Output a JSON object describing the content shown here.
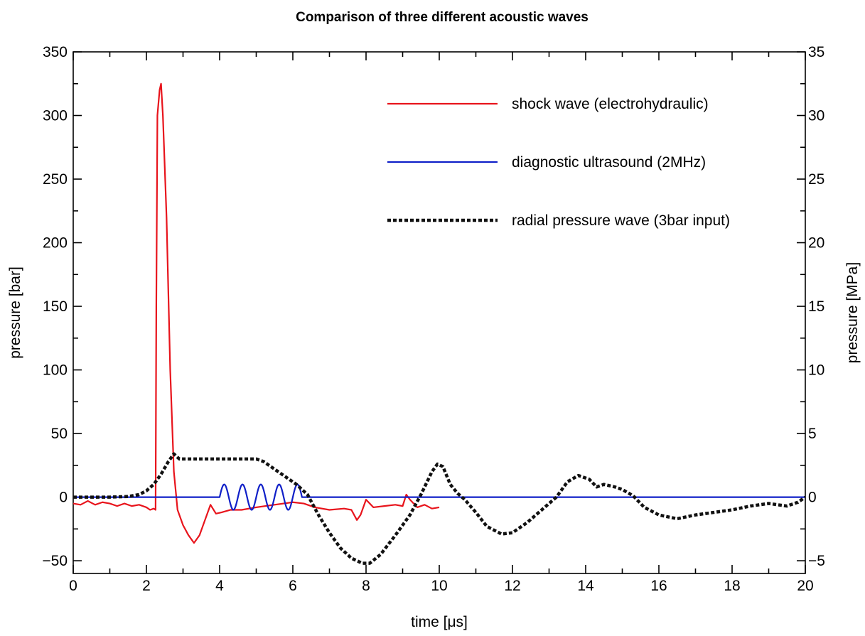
{
  "chart_data": {
    "type": "line",
    "title": "Comparison of three different acoustic waves",
    "xlabel": "time [μs]",
    "ylabel_left": "pressure [bar]",
    "ylabel_right": "pressure [MPa]",
    "xlim": [
      0,
      20
    ],
    "ylim_left": [
      -60,
      350
    ],
    "ylim_right": [
      -6,
      35
    ],
    "x_ticks": [
      "0",
      "2",
      "4",
      "6",
      "8",
      "10",
      "12",
      "14",
      "16",
      "18",
      "20"
    ],
    "y_ticks_left": [
      "−50",
      "0",
      "50",
      "100",
      "150",
      "200",
      "250",
      "300",
      "350"
    ],
    "y_ticks_right": [
      "−5",
      "0",
      "5",
      "10",
      "15",
      "20",
      "25",
      "30",
      "35"
    ],
    "grid": false,
    "legend_position": "top-right",
    "series": [
      {
        "name": "shock wave (electrohydraulic)",
        "color": "#e8141c",
        "style": "solid",
        "points": [
          [
            0,
            -5
          ],
          [
            0.2,
            -6
          ],
          [
            0.4,
            -3
          ],
          [
            0.6,
            -6
          ],
          [
            0.8,
            -4
          ],
          [
            1.0,
            -5
          ],
          [
            1.2,
            -7
          ],
          [
            1.4,
            -5
          ],
          [
            1.6,
            -7
          ],
          [
            1.8,
            -6
          ],
          [
            2.0,
            -8
          ],
          [
            2.1,
            -10
          ],
          [
            2.2,
            -9
          ],
          [
            2.25,
            -10
          ],
          [
            2.27,
            150
          ],
          [
            2.3,
            300
          ],
          [
            2.36,
            320
          ],
          [
            2.4,
            325
          ],
          [
            2.45,
            300
          ],
          [
            2.55,
            220
          ],
          [
            2.65,
            100
          ],
          [
            2.75,
            20
          ],
          [
            2.85,
            -10
          ],
          [
            3.0,
            -22
          ],
          [
            3.15,
            -30
          ],
          [
            3.3,
            -36
          ],
          [
            3.45,
            -30
          ],
          [
            3.6,
            -18
          ],
          [
            3.75,
            -6
          ],
          [
            3.9,
            -13
          ],
          [
            4.05,
            -12
          ],
          [
            4.3,
            -10
          ],
          [
            4.6,
            -10
          ],
          [
            5.0,
            -8
          ],
          [
            5.5,
            -6
          ],
          [
            6.0,
            -4
          ],
          [
            6.3,
            -5
          ],
          [
            6.6,
            -8
          ],
          [
            7.0,
            -10
          ],
          [
            7.4,
            -9
          ],
          [
            7.6,
            -10
          ],
          [
            7.75,
            -18
          ],
          [
            7.85,
            -14
          ],
          [
            8.0,
            -2
          ],
          [
            8.2,
            -8
          ],
          [
            8.5,
            -7
          ],
          [
            8.8,
            -6
          ],
          [
            9.0,
            -7
          ],
          [
            9.1,
            2
          ],
          [
            9.2,
            -2
          ],
          [
            9.4,
            -8
          ],
          [
            9.6,
            -6
          ],
          [
            9.8,
            -9
          ],
          [
            10.0,
            -8
          ]
        ]
      },
      {
        "name": "diagnostic ultrasound (2MHz)",
        "color": "#1020c8",
        "style": "solid",
        "x_range": [
          0,
          20
        ],
        "baseline": 0,
        "burst": {
          "start": 4.0,
          "end": 6.25,
          "frequency_mhz": 2,
          "amplitude": 10
        }
      },
      {
        "name": "radial pressure wave (3bar input)",
        "color": "#111111",
        "style": "dotted",
        "points": [
          [
            0,
            0
          ],
          [
            0.5,
            0
          ],
          [
            1.0,
            0
          ],
          [
            1.5,
            0.5
          ],
          [
            1.8,
            2
          ],
          [
            2.0,
            5
          ],
          [
            2.2,
            10
          ],
          [
            2.4,
            18
          ],
          [
            2.6,
            28
          ],
          [
            2.75,
            34
          ],
          [
            2.9,
            30
          ],
          [
            3.2,
            30
          ],
          [
            3.6,
            30
          ],
          [
            4.0,
            30
          ],
          [
            4.5,
            30
          ],
          [
            5.0,
            30
          ],
          [
            5.2,
            28
          ],
          [
            5.5,
            22
          ],
          [
            5.8,
            16
          ],
          [
            6.1,
            10
          ],
          [
            6.4,
            2
          ],
          [
            6.7,
            -14
          ],
          [
            7.0,
            -28
          ],
          [
            7.3,
            -40
          ],
          [
            7.6,
            -48
          ],
          [
            7.9,
            -52
          ],
          [
            8.1,
            -52
          ],
          [
            8.4,
            -45
          ],
          [
            8.8,
            -30
          ],
          [
            9.2,
            -14
          ],
          [
            9.5,
            2
          ],
          [
            9.8,
            20
          ],
          [
            9.95,
            26
          ],
          [
            10.1,
            24
          ],
          [
            10.3,
            10
          ],
          [
            10.5,
            3
          ],
          [
            10.7,
            -2
          ],
          [
            11.0,
            -12
          ],
          [
            11.3,
            -23
          ],
          [
            11.7,
            -29
          ],
          [
            12.0,
            -28
          ],
          [
            12.4,
            -20
          ],
          [
            12.8,
            -10
          ],
          [
            13.2,
            0
          ],
          [
            13.5,
            12
          ],
          [
            13.8,
            17
          ],
          [
            14.1,
            14
          ],
          [
            14.3,
            8
          ],
          [
            14.5,
            10
          ],
          [
            14.8,
            8
          ],
          [
            15.0,
            6
          ],
          [
            15.3,
            1
          ],
          [
            15.6,
            -8
          ],
          [
            16.0,
            -14
          ],
          [
            16.5,
            -17
          ],
          [
            17.0,
            -14
          ],
          [
            17.5,
            -12
          ],
          [
            18.0,
            -10
          ],
          [
            18.5,
            -7
          ],
          [
            19.0,
            -5
          ],
          [
            19.5,
            -7
          ],
          [
            19.8,
            -4
          ],
          [
            20.0,
            0
          ]
        ]
      }
    ]
  }
}
